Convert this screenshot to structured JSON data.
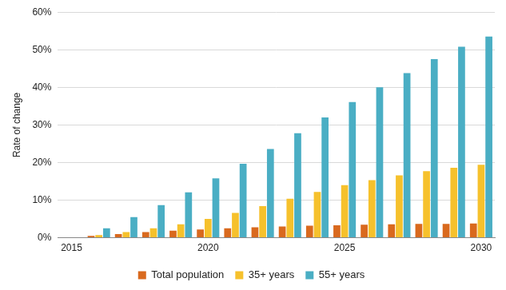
{
  "chart_data": {
    "type": "bar",
    "y_label": "Rate of change",
    "categories": [
      "2015",
      null,
      null,
      null,
      null,
      "2020",
      null,
      null,
      null,
      null,
      "2025",
      null,
      null,
      null,
      null,
      "2030"
    ],
    "series": [
      {
        "name": "Total population",
        "color": "#d9691e",
        "values": [
          0,
          0.5,
          1.0,
          1.5,
          1.9,
          2.2,
          2.5,
          2.8,
          3.0,
          3.2,
          3.3,
          3.5,
          3.6,
          3.7,
          3.7,
          3.8
        ]
      },
      {
        "name": "35+ years",
        "color": "#f6c12c",
        "values": [
          0,
          0.7,
          1.5,
          2.5,
          3.6,
          5.0,
          6.6,
          8.4,
          10.4,
          12.2,
          14.0,
          15.3,
          16.6,
          17.7,
          18.6,
          19.4
        ]
      },
      {
        "name": "55+ years",
        "color": "#4aaec4",
        "values": [
          0,
          2.5,
          5.5,
          8.7,
          12.1,
          15.8,
          19.7,
          23.6,
          27.8,
          32.0,
          36.1,
          40.0,
          43.8,
          47.5,
          50.8,
          53.5
        ]
      }
    ],
    "ylim": [
      0,
      60
    ],
    "yticks": [
      {
        "value": 0,
        "label": "0%"
      },
      {
        "value": 10,
        "label": "10%"
      },
      {
        "value": 20,
        "label": "20%"
      },
      {
        "value": 30,
        "label": "30%"
      },
      {
        "value": 40,
        "label": "40%"
      },
      {
        "value": 50,
        "label": "50%"
      },
      {
        "value": 60,
        "label": "60%"
      }
    ],
    "grid": true,
    "legend": "bottom"
  }
}
